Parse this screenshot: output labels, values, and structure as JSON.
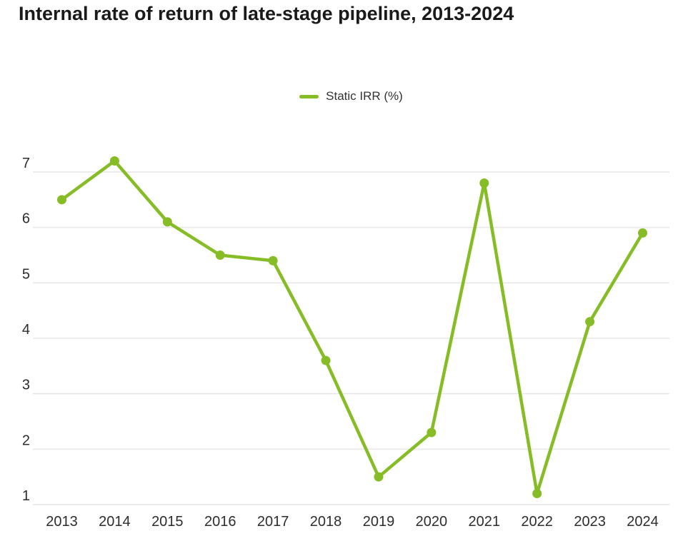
{
  "page": {
    "background": "#ffffff"
  },
  "chart_data": {
    "type": "line",
    "title": "Internal rate of return of late-stage pipeline, 2013-2024",
    "categories": [
      "2013",
      "2014",
      "2015",
      "2016",
      "2017",
      "2018",
      "2019",
      "2020",
      "2021",
      "2022",
      "2023",
      "2024"
    ],
    "series": [
      {
        "name": "Static IRR (%)",
        "values": [
          6.5,
          7.2,
          6.1,
          5.5,
          5.4,
          3.6,
          1.5,
          2.3,
          6.8,
          1.2,
          4.3,
          5.9
        ],
        "color": "#86BC25",
        "marker": "circle"
      }
    ],
    "xlabel": "",
    "ylabel": "",
    "ylim": [
      1,
      7
    ],
    "yticks": [
      1,
      2,
      3,
      4,
      5,
      6,
      7
    ],
    "grid": "horizontal-only",
    "legend_position": "top-center"
  },
  "colors": {
    "accent_green": "#86BC25",
    "gridline": "#e6e6e6",
    "title_text": "#1a1a1a",
    "axis_text": "#2d2d2d",
    "legend_text": "#333333",
    "background": "#ffffff"
  }
}
